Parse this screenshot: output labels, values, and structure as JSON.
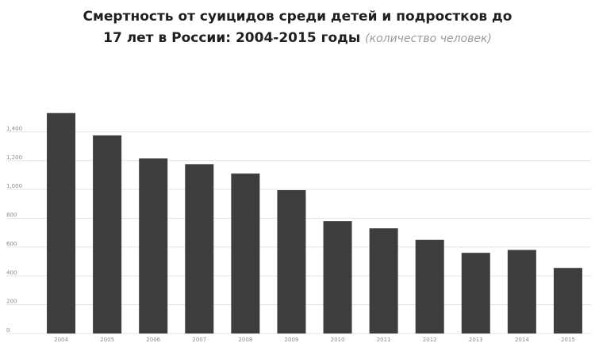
{
  "title": {
    "line1": "Смертность от суицидов среди детей и подростков до",
    "line2": "17 лет в России: 2004-2015 годы",
    "subtitle": "(количество человек)"
  },
  "colors": {
    "bar": "#3d3d3d",
    "grid": "#e3e3e3",
    "axis_text": "#8a8a8a",
    "title": "#1f1f1f",
    "subtitle": "#9a9a9a"
  },
  "chart_data": {
    "type": "bar",
    "categories": [
      "2004",
      "2005",
      "2006",
      "2007",
      "2008",
      "2009",
      "2010",
      "2011",
      "2012",
      "2013",
      "2014",
      "2015"
    ],
    "values": [
      1530,
      1375,
      1215,
      1175,
      1110,
      995,
      780,
      730,
      650,
      560,
      580,
      455
    ],
    "ylim": [
      0,
      1600
    ],
    "yticks": [
      0,
      200,
      400,
      600,
      800,
      1000,
      1200,
      1400
    ],
    "ytick_labels": [
      "0",
      "200",
      "400",
      "600",
      "800",
      "1,000",
      "1,200",
      "1,400"
    ],
    "grid": true,
    "xlabel": "",
    "ylabel": ""
  }
}
